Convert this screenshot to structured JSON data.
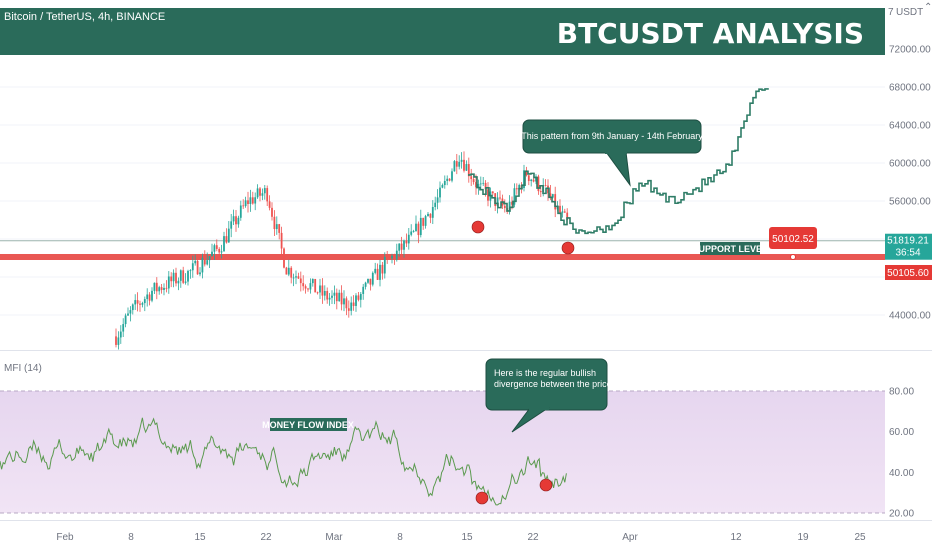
{
  "header": {
    "symbol_line": "Bitcoin / TetherUS, 4h, BINANCE",
    "banner_title": "BTCUSDT ANALYSIS",
    "currency_label": "USDT"
  },
  "chart_data": [
    {
      "type": "candlestick",
      "title": "Bitcoin / TetherUS, 4h, BINANCE",
      "y_ticks": [
        44000,
        48000,
        52000,
        56000,
        60000,
        64000,
        68000,
        72000
      ],
      "y_tick_labels": [
        "44000.00",
        "",
        "",
        "56000.00",
        "60000.00",
        "64000.00",
        "68000.00",
        "72000.00"
      ],
      "ylim": [
        40000,
        76000
      ],
      "x_labels": [
        "Feb",
        "8",
        "15",
        "22",
        "Mar",
        "8",
        "15",
        "22",
        "Apr",
        "12",
        "19",
        "25"
      ],
      "price_path_approx": [
        [
          "2021-01-31",
          40000
        ],
        [
          "2021-02-04",
          38000
        ],
        [
          "2021-02-08",
          44500
        ],
        [
          "2021-02-10",
          46500
        ],
        [
          "2021-02-14",
          48500
        ],
        [
          "2021-02-17",
          51000
        ],
        [
          "2021-02-20",
          56000
        ],
        [
          "2021-02-22",
          57000
        ],
        [
          "2021-02-24",
          49000
        ],
        [
          "2021-02-28",
          46000
        ],
        [
          "2021-03-03",
          45000
        ],
        [
          "2021-03-06",
          49000
        ],
        [
          "2021-03-09",
          52000
        ],
        [
          "2021-03-12",
          56500
        ],
        [
          "2021-03-14",
          61000
        ],
        [
          "2021-03-16",
          57500
        ],
        [
          "2021-03-19",
          55000
        ],
        [
          "2021-03-21",
          59000
        ],
        [
          "2021-03-23",
          57000
        ],
        [
          "2021-03-25",
          54000
        ],
        [
          "2021-03-26",
          52500
        ],
        [
          "2021-03-30",
          53500
        ],
        [
          "2021-04-02",
          58000
        ],
        [
          "2021-04-05",
          56000
        ],
        [
          "2021-04-08",
          57500
        ],
        [
          "2021-04-11",
          59500
        ],
        [
          "2021-04-13",
          65000
        ],
        [
          "2021-04-14",
          68000
        ],
        [
          "2021-04-17",
          67500
        ],
        [
          "2021-04-18",
          69500
        ]
      ],
      "support_level": 50105.6,
      "current_price": 51819.21,
      "countdown": "36:54",
      "marker_price": "50102.52",
      "support_label": "SUPPORT LEVEL",
      "callout": "This pattern from 9th January - 14th February"
    },
    {
      "type": "line",
      "title": "MFI (14)",
      "y_ticks": [
        20,
        40,
        60,
        80
      ],
      "y_tick_labels": [
        "20.00",
        "40.00",
        "60.00",
        "80.00"
      ],
      "ylim": [
        18,
        92
      ],
      "band": [
        20,
        80
      ],
      "label": "MONEY FLOW INDEX",
      "callout": "Here is the regular bullish divergence between the price and MFI"
    }
  ],
  "colors": {
    "banner": "#2a6b5a",
    "up": "#26a69a",
    "down": "#ef5350",
    "price_line": "#2f7d67",
    "mfi_line": "#5b9a4f",
    "band_fill": "#ecdcf3",
    "support": "#e53935",
    "current_price": "#26a69a"
  }
}
